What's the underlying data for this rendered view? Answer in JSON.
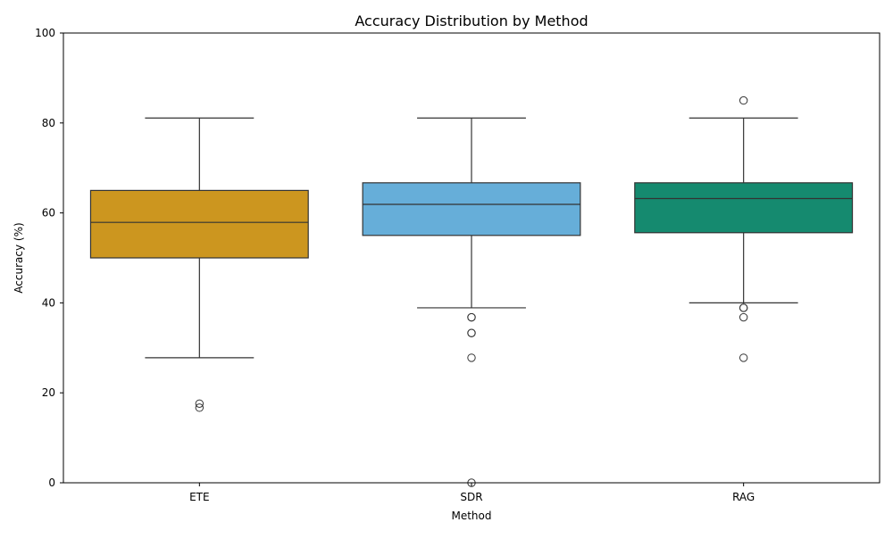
{
  "chart_data": {
    "type": "boxplot",
    "title": "Accuracy Distribution by Method",
    "xlabel": "Method",
    "ylabel": "Accuracy (%)",
    "ylim": [
      0,
      100
    ],
    "yticks": [
      0,
      20,
      40,
      60,
      80,
      100
    ],
    "categories": [
      "ETE",
      "SDR",
      "RAG"
    ],
    "grid": false,
    "series": [
      {
        "category": "ETE",
        "color": "#CC961F",
        "whisker_low": 27.8,
        "q1": 50.0,
        "median": 57.9,
        "q3": 65.0,
        "whisker_high": 81.1,
        "outliers": [
          17.6,
          16.7
        ]
      },
      {
        "category": "SDR",
        "color": "#66AED9",
        "whisker_low": 38.9,
        "q1": 55.0,
        "median": 61.9,
        "q3": 66.7,
        "whisker_high": 81.1,
        "outliers": [
          36.8,
          36.8,
          33.3,
          33.3,
          27.8,
          0.0
        ]
      },
      {
        "category": "RAG",
        "color": "#158A6F",
        "whisker_low": 40.0,
        "q1": 55.6,
        "median": 63.2,
        "q3": 66.7,
        "whisker_high": 81.1,
        "outliers": [
          85.0,
          38.9,
          38.9,
          36.8,
          27.8
        ]
      }
    ]
  }
}
